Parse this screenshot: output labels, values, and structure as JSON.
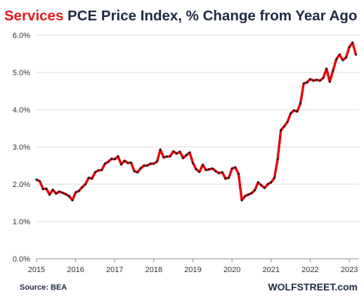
{
  "chart_data": {
    "type": "line",
    "title_highlight": "Services",
    "title_rest": " PCE Price Index, % Change from Year Ago",
    "title_highlight_color": "#e31a1c",
    "title_color": "#1f2a44",
    "line_color": "#e8000b",
    "marker_color": "#1a1a1a",
    "grid": true,
    "grid_color": "#d9d9d9",
    "ylim": [
      0,
      6
    ],
    "xlim": [
      2015,
      2023.25
    ],
    "y_ticks": [
      {
        "value": 0,
        "label": "0.0%"
      },
      {
        "value": 1,
        "label": "1.0%"
      },
      {
        "value": 2,
        "label": "2.0%"
      },
      {
        "value": 3,
        "label": "3.0%"
      },
      {
        "value": 4,
        "label": "4.0%"
      },
      {
        "value": 5,
        "label": "5.0%"
      },
      {
        "value": 6,
        "label": "6.0%"
      }
    ],
    "x_ticks": [
      {
        "value": 2015,
        "label": "2015"
      },
      {
        "value": 2016,
        "label": "2016"
      },
      {
        "value": 2017,
        "label": "2017"
      },
      {
        "value": 2018,
        "label": "2018"
      },
      {
        "value": 2019,
        "label": "2019"
      },
      {
        "value": 2020,
        "label": "2020"
      },
      {
        "value": 2021,
        "label": "2021"
      },
      {
        "value": 2022,
        "label": "2022"
      },
      {
        "value": 2023,
        "label": "2023"
      }
    ],
    "series": [
      {
        "start_year": 2015,
        "start_month": 1,
        "values": [
          2.12,
          2.08,
          1.87,
          1.88,
          1.72,
          1.85,
          1.75,
          1.8,
          1.77,
          1.73,
          1.68,
          1.57,
          1.78,
          1.82,
          1.92,
          2.0,
          2.17,
          2.15,
          2.32,
          2.37,
          2.38,
          2.55,
          2.6,
          2.68,
          2.67,
          2.75,
          2.53,
          2.63,
          2.57,
          2.58,
          2.35,
          2.32,
          2.43,
          2.5,
          2.5,
          2.55,
          2.55,
          2.61,
          2.93,
          2.72,
          2.74,
          2.75,
          2.88,
          2.82,
          2.87,
          2.7,
          2.78,
          2.85,
          2.57,
          2.4,
          2.33,
          2.52,
          2.38,
          2.4,
          2.42,
          2.35,
          2.3,
          2.32,
          2.15,
          2.17,
          2.42,
          2.45,
          2.28,
          1.57,
          1.68,
          1.72,
          1.76,
          1.84,
          2.05,
          1.97,
          1.9,
          2.0,
          2.05,
          2.17,
          2.67,
          3.45,
          3.55,
          3.67,
          3.9,
          3.98,
          3.95,
          4.17,
          4.7,
          4.73,
          4.82,
          4.78,
          4.8,
          4.78,
          4.85,
          5.1,
          4.75,
          5.05,
          5.35,
          5.48,
          5.33,
          5.4,
          5.68,
          5.8,
          5.48
        ]
      }
    ],
    "source": "Source: BEA",
    "brand": "WOLFSTREET.com"
  }
}
